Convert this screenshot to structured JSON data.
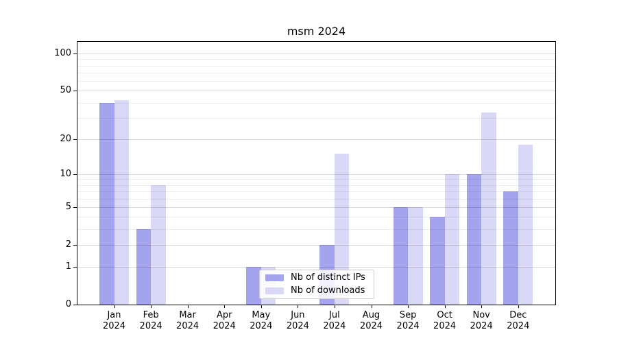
{
  "chart_data": {
    "type": "bar",
    "title": "msm 2024",
    "categories": [
      "Jan",
      "Feb",
      "Mar",
      "Apr",
      "May",
      "Jun",
      "Jul",
      "Aug",
      "Sep",
      "Oct",
      "Nov",
      "Dec"
    ],
    "x_year_label": "2024",
    "series": [
      {
        "id": "distinct-ips",
        "name": "Nb of distinct IPs",
        "color": "#a3a3ee",
        "values": [
          40,
          3,
          0,
          0,
          1,
          0,
          2,
          0,
          5,
          4,
          10,
          7
        ]
      },
      {
        "id": "downloads",
        "name": "Nb of downloads",
        "color": "#d9d9f7",
        "values": [
          42,
          8,
          0,
          0,
          1,
          0,
          15,
          0,
          5,
          10,
          33,
          18
        ]
      }
    ],
    "yscale": "log10(1+x)",
    "ylim": [
      0,
      124
    ],
    "y_major_ticks": [
      0,
      1,
      2,
      5,
      10,
      20,
      50,
      100
    ],
    "y_minor_ticks": [
      3,
      4,
      6,
      7,
      8,
      9,
      30,
      40,
      60,
      70,
      80,
      90
    ],
    "grid": true,
    "legend_position": "lower center",
    "colors": {
      "spine": "#000000",
      "major_grid": "#d9d9d9",
      "minor_grid": "#ececec",
      "legend_border": "#cccccc"
    }
  }
}
